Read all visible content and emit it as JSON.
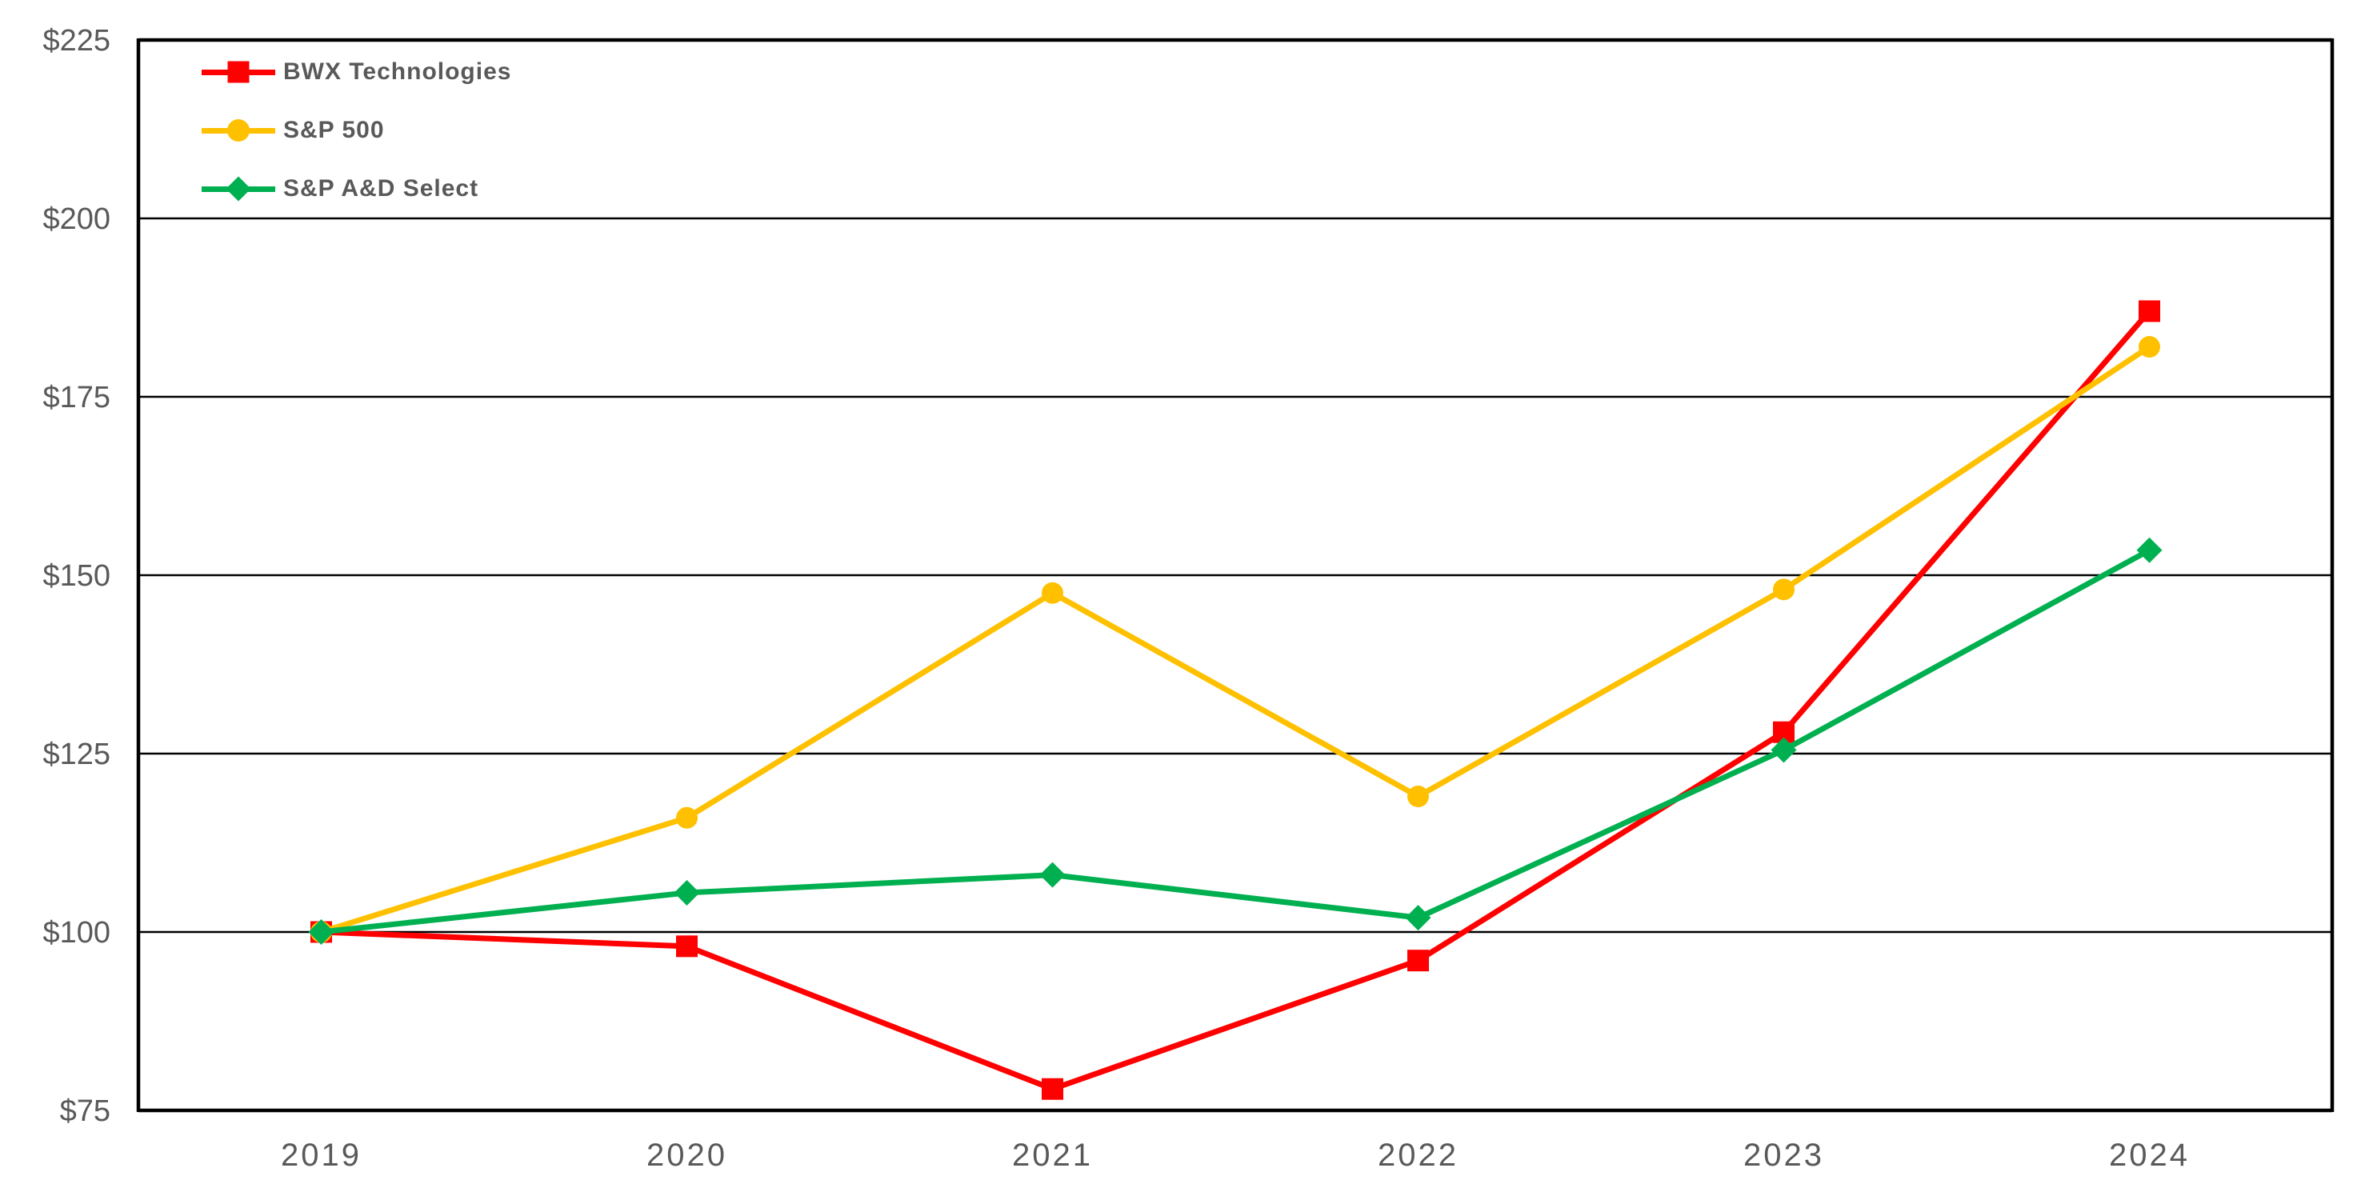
{
  "chart_data": {
    "type": "line",
    "title": "",
    "categories": [
      "2019",
      "2020",
      "2021",
      "2022",
      "2023",
      "2024"
    ],
    "series": [
      {
        "name": "BWX Technologies",
        "color": "#FF0000",
        "marker": "square",
        "values": [
          100,
          98,
          78,
          96,
          128,
          187
        ]
      },
      {
        "name": "S&P 500",
        "color": "#FFC000",
        "marker": "circle",
        "values": [
          100,
          116,
          147.5,
          119,
          148,
          182
        ]
      },
      {
        "name": "S&P A&D Select",
        "color": "#00B050",
        "marker": "diamond",
        "values": [
          100,
          105.5,
          108,
          102,
          125.5,
          153.5
        ]
      }
    ],
    "y_axis": {
      "min": 75,
      "max": 225,
      "step": 25,
      "tick_labels": [
        "$75",
        "$100",
        "$125",
        "$150",
        "$175",
        "$200",
        "$225"
      ],
      "unit": "$"
    },
    "x_axis": {
      "tick_labels": [
        "2019",
        "2020",
        "2021",
        "2022",
        "2023",
        "2024"
      ]
    },
    "grid": "horizontal",
    "legend_position": "top-left-inside",
    "background": "#FFFFFF",
    "axis_color": "#000000",
    "text_color": "#595959"
  }
}
